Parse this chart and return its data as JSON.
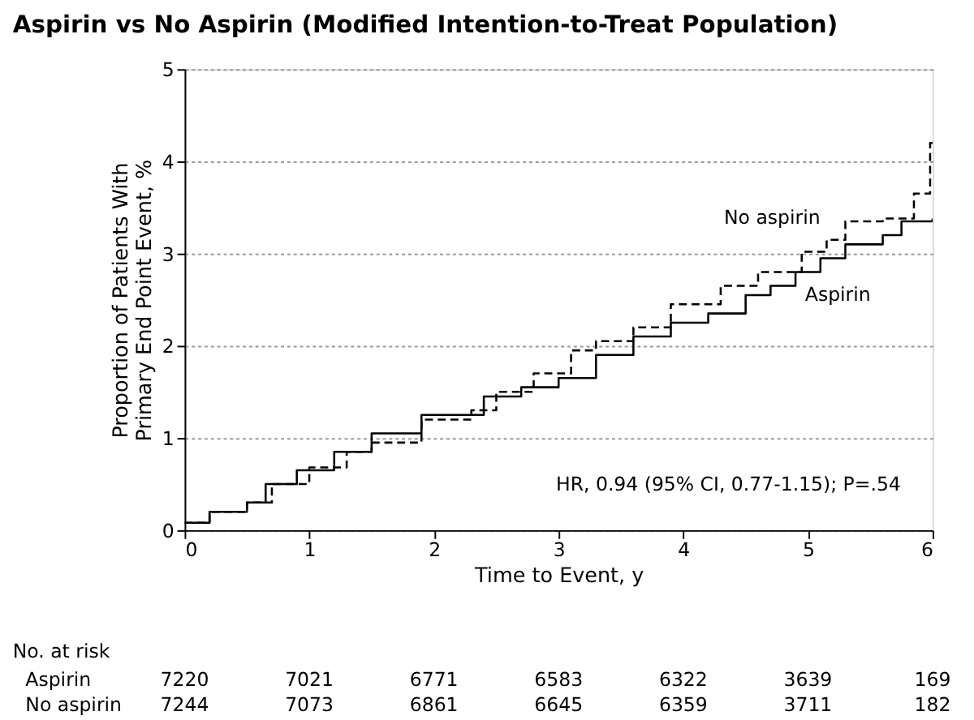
{
  "chart_data": {
    "type": "step",
    "title": "Aspirin vs No Aspirin (Modified Intention-to-Treat Population)",
    "xlabel": "Time to Event, y",
    "ylabel": "Proportion of Patients With Primary End Point Event, %",
    "xlim": [
      0,
      6
    ],
    "xticks": [
      0,
      1,
      2,
      3,
      4,
      5,
      6
    ],
    "ylim": [
      0,
      5
    ],
    "yticks": [
      0,
      1,
      2,
      3,
      4,
      5
    ],
    "grid": "y",
    "series": [
      {
        "name": "Aspirin",
        "color": "#000000",
        "line_style": "solid",
        "x": [
          0,
          0.2,
          0.5,
          0.65,
          0.9,
          1.2,
          1.5,
          1.9,
          2.4,
          2.7,
          3.0,
          3.3,
          3.6,
          3.9,
          4.2,
          4.5,
          4.7,
          4.9,
          5.1,
          5.3,
          5.6,
          5.75,
          6
        ],
        "values": [
          0.08,
          0.2,
          0.3,
          0.5,
          0.65,
          0.85,
          1.05,
          1.25,
          1.45,
          1.55,
          1.65,
          1.9,
          2.1,
          2.25,
          2.35,
          2.55,
          2.65,
          2.8,
          2.95,
          3.1,
          3.2,
          3.35,
          3.38
        ]
      },
      {
        "name": "No aspirin",
        "color": "#000000",
        "line_style": "dashed",
        "x": [
          0,
          0.2,
          0.5,
          0.7,
          1.0,
          1.3,
          1.5,
          1.9,
          2.3,
          2.5,
          2.8,
          3.1,
          3.3,
          3.6,
          3.9,
          4.3,
          4.6,
          4.95,
          5.15,
          5.3,
          5.6,
          5.85,
          5.98,
          6
        ],
        "values": [
          0.08,
          0.2,
          0.3,
          0.5,
          0.68,
          0.85,
          0.95,
          1.2,
          1.3,
          1.5,
          1.7,
          1.95,
          2.05,
          2.2,
          2.45,
          2.65,
          2.8,
          3.02,
          3.15,
          3.35,
          3.38,
          3.65,
          4.2,
          4.2
        ]
      }
    ],
    "annotations": [
      "HR, 0.94 (95% CI, 0.77-1.15); P=.54",
      "No. at risk",
      "Aspirin",
      "No aspirin",
      "7220",
      "7021",
      "6771",
      "6583",
      "6322",
      "3639",
      "169",
      "7244",
      "7073",
      "6861",
      "6645",
      "6359",
      "3711",
      "182"
    ]
  }
}
